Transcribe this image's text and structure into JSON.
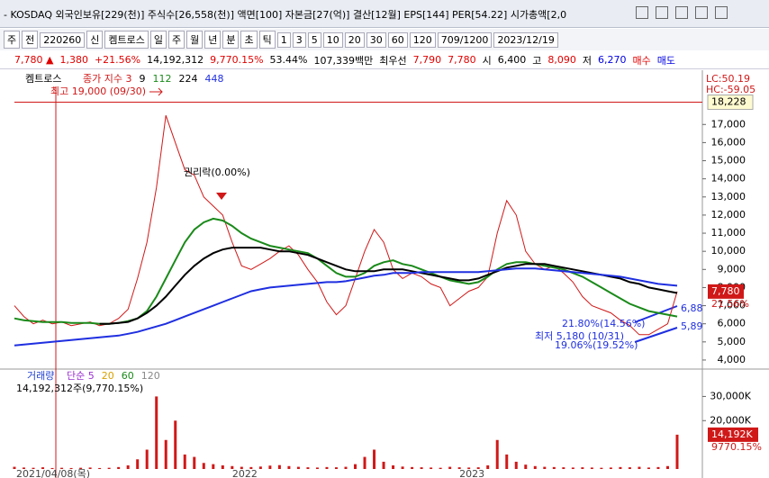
{
  "title_bar": "- KOSDAQ 외국인보유[229(천)] 주식수[26,558(천)] 액면[100] 자본금[27(억)] 결산[12월] EPS[144] PER[54.22] 시가총액[2,0",
  "toolbar": [
    "주",
    "전",
    "220260",
    "신",
    "켐트로스",
    "일",
    "주",
    "월",
    "년",
    "분",
    "초",
    "틱",
    "1",
    "3",
    "5",
    "10",
    "20",
    "30",
    "60",
    "120",
    "709/1200",
    "2023/12/19"
  ],
  "quote": [
    {
      "text": "7,780 ▲",
      "color": "#e00000"
    },
    {
      "text": "1,380",
      "color": "#e00000"
    },
    {
      "text": "+21.56%",
      "color": "#e00000"
    },
    {
      "text": "14,192,312",
      "color": "#000000"
    },
    {
      "text": "9,770.15%",
      "color": "#e00000"
    },
    {
      "text": "53.44%",
      "color": "#000000"
    },
    {
      "text": "107,339백만",
      "color": "#000000"
    },
    {
      "text": "최우선",
      "color": "#000000"
    },
    {
      "text": "7,790",
      "color": "#e00000"
    },
    {
      "text": "7,780",
      "color": "#e00000"
    },
    {
      "text": "시",
      "color": "#000000"
    },
    {
      "text": "6,400",
      "color": "#000000"
    },
    {
      "text": "고",
      "color": "#000000"
    },
    {
      "text": "8,090",
      "color": "#e00000"
    },
    {
      "text": "저",
      "color": "#000000"
    },
    {
      "text": "6,270",
      "color": "#0000e0"
    },
    {
      "text": "매수",
      "color": "#e00000"
    },
    {
      "text": "매도",
      "color": "#0000e0"
    }
  ],
  "chart_data": [
    {
      "type": "line",
      "legend_title": "켐트로스",
      "legend_extra": [
        {
          "text": "9",
          "color": "#000000"
        }
      ],
      "categories": [
        "2021/04/08(목)",
        null,
        null,
        null,
        null,
        null,
        null,
        null,
        null,
        null,
        null,
        null,
        null,
        null,
        null,
        null,
        null,
        null,
        null,
        null,
        null,
        null,
        null,
        "2022",
        null,
        null,
        null,
        null,
        null,
        null,
        null,
        null,
        null,
        null,
        null,
        null,
        null,
        null,
        null,
        null,
        null,
        null,
        null,
        null,
        null,
        null,
        null,
        "2023",
        null,
        null,
        null,
        null,
        null,
        null,
        null,
        null,
        null,
        null,
        null,
        null,
        null,
        null,
        null,
        null,
        null,
        null,
        null,
        null,
        null,
        null,
        null
      ],
      "series": [
        {
          "name": "종가 지수 3",
          "color": "#d01818",
          "values": [
            7000,
            6400,
            6000,
            6200,
            6000,
            6100,
            5900,
            6000,
            6100,
            5900,
            6000,
            6300,
            6800,
            8500,
            10500,
            13500,
            17500,
            16000,
            14500,
            14200,
            13000,
            12500,
            12000,
            10500,
            9200,
            9000,
            9300,
            9600,
            10000,
            10300,
            9800,
            9000,
            8300,
            7200,
            6500,
            7000,
            8500,
            10000,
            11200,
            10500,
            9000,
            8500,
            8800,
            8600,
            8200,
            8000,
            7000,
            7400,
            7800,
            8000,
            8600,
            11000,
            12800,
            12000,
            10000,
            9300,
            9000,
            9200,
            8800,
            8300,
            7500,
            7000,
            6800,
            6600,
            6200,
            5900,
            5400,
            5400,
            5700,
            6000,
            7780
          ]
        },
        {
          "name": "112",
          "color": "#1a8a1a",
          "values": [
            6300,
            6200,
            6150,
            6100,
            6100,
            6100,
            6050,
            6050,
            6050,
            6000,
            6000,
            6050,
            6150,
            6300,
            6700,
            7500,
            8500,
            9500,
            10500,
            11200,
            11600,
            11800,
            11700,
            11400,
            11000,
            10700,
            10500,
            10300,
            10200,
            10100,
            10000,
            9900,
            9600,
            9200,
            8800,
            8600,
            8600,
            8800,
            9200,
            9400,
            9500,
            9300,
            9200,
            9000,
            8800,
            8600,
            8400,
            8300,
            8200,
            8300,
            8600,
            9000,
            9300,
            9400,
            9400,
            9300,
            9200,
            9100,
            9000,
            8800,
            8600,
            8300,
            8000,
            7700,
            7400,
            7100,
            6900,
            6700,
            6600,
            6500,
            6400
          ]
        },
        {
          "name": "224",
          "color": "#000000",
          "values": [
            null,
            null,
            null,
            null,
            null,
            null,
            null,
            null,
            null,
            6000,
            6000,
            6050,
            6100,
            6300,
            6600,
            7000,
            7500,
            8100,
            8700,
            9200,
            9600,
            9900,
            10100,
            10200,
            10200,
            10200,
            10200,
            10100,
            10000,
            10000,
            9900,
            9800,
            9600,
            9400,
            9200,
            9000,
            8900,
            8900,
            8900,
            9000,
            9000,
            9000,
            8900,
            8800,
            8700,
            8600,
            8500,
            8400,
            8400,
            8500,
            8700,
            8900,
            9100,
            9200,
            9300,
            9300,
            9300,
            9200,
            9100,
            9000,
            8900,
            8800,
            8700,
            8600,
            8500,
            8300,
            8200,
            8000,
            7900,
            7800,
            7700
          ]
        },
        {
          "name": "448",
          "color": "#1f2fe0",
          "values": [
            4800,
            4850,
            4900,
            4950,
            5000,
            5050,
            5100,
            5150,
            5200,
            5250,
            5300,
            5350,
            5450,
            5550,
            5700,
            5850,
            6000,
            6200,
            6400,
            6600,
            6800,
            7000,
            7200,
            7400,
            7600,
            7800,
            7900,
            8000,
            8050,
            8100,
            8150,
            8200,
            8250,
            8300,
            8300,
            8350,
            8450,
            8550,
            8650,
            8700,
            8800,
            8800,
            8800,
            8850,
            8850,
            8850,
            8850,
            8850,
            8850,
            8850,
            8900,
            8950,
            9000,
            9050,
            9050,
            9050,
            9000,
            8950,
            8900,
            8850,
            8800,
            8750,
            8700,
            8650,
            8600,
            8500,
            8400,
            8300,
            8200,
            8150,
            8100
          ]
        }
      ],
      "ylim": [
        3600,
        19100
      ],
      "yticks": [
        {
          "value": 4000,
          "label": "4,000"
        },
        {
          "value": 5000,
          "label": "5,000"
        },
        {
          "value": 6000,
          "label": "6,000"
        },
        {
          "value": 7000,
          "label": "7,000"
        },
        {
          "value": 8000,
          "label": "8,000"
        },
        {
          "value": 9000,
          "label": "9,000"
        },
        {
          "value": 10000,
          "label": "10,000"
        },
        {
          "value": 11000,
          "label": "11,000"
        },
        {
          "value": 12000,
          "label": "12,000"
        },
        {
          "value": 13000,
          "label": "13,000"
        },
        {
          "value": 14000,
          "label": "14,000"
        },
        {
          "value": 15000,
          "label": "15,000"
        },
        {
          "value": 16000,
          "label": "16,000"
        },
        {
          "value": 17000,
          "label": "17,000"
        }
      ],
      "ref_line": {
        "value": 18228,
        "label": "18,228",
        "color": "#d01818"
      },
      "last_label": {
        "value": 7780,
        "label": "7,780"
      },
      "last_change": "21.56%",
      "corner_labels": [
        "LC:50.19",
        "HC:-59.05"
      ],
      "annotations": [
        "최고 19,000 (09/30)",
        "권리락(0.00%)",
        "21.80%(14.56%)",
        "최저 5,180 (10/31)",
        "19.06%(19.52%)",
        "6,88",
        "5,89"
      ]
    },
    {
      "type": "bar",
      "legend_title": "거래량",
      "series": [
        {
          "name": "단순 5",
          "color": "#9b30d0"
        },
        {
          "name": "20",
          "color": "#d8a000"
        },
        {
          "name": "60",
          "color": "#1a8a1a"
        },
        {
          "name": "120",
          "color": "#888888"
        }
      ],
      "info": "14,192,312주(9,770.15%)",
      "color": "#d01818",
      "values": [
        900,
        600,
        500,
        700,
        400,
        500,
        400,
        500,
        600,
        400,
        500,
        800,
        1500,
        4000,
        8000,
        30000,
        12000,
        20000,
        6000,
        5000,
        2500,
        2000,
        1500,
        1200,
        900,
        800,
        1000,
        1400,
        1600,
        1200,
        900,
        700,
        600,
        800,
        700,
        900,
        2000,
        5000,
        8000,
        3000,
        1500,
        1000,
        800,
        700,
        600,
        500,
        900,
        700,
        600,
        700,
        1500,
        12000,
        6000,
        3000,
        1800,
        1200,
        900,
        800,
        700,
        600,
        700,
        600,
        500,
        600,
        800,
        700,
        900,
        600,
        800,
        1200,
        14192
      ],
      "ylim": [
        0,
        37600
      ],
      "yticks": [
        {
          "value": 20000,
          "label": "20,000K"
        },
        {
          "value": 30000,
          "label": "30,000K"
        }
      ],
      "last_label": {
        "value": 14192,
        "label": "14,192K"
      },
      "last_change": "9770.15%"
    }
  ]
}
